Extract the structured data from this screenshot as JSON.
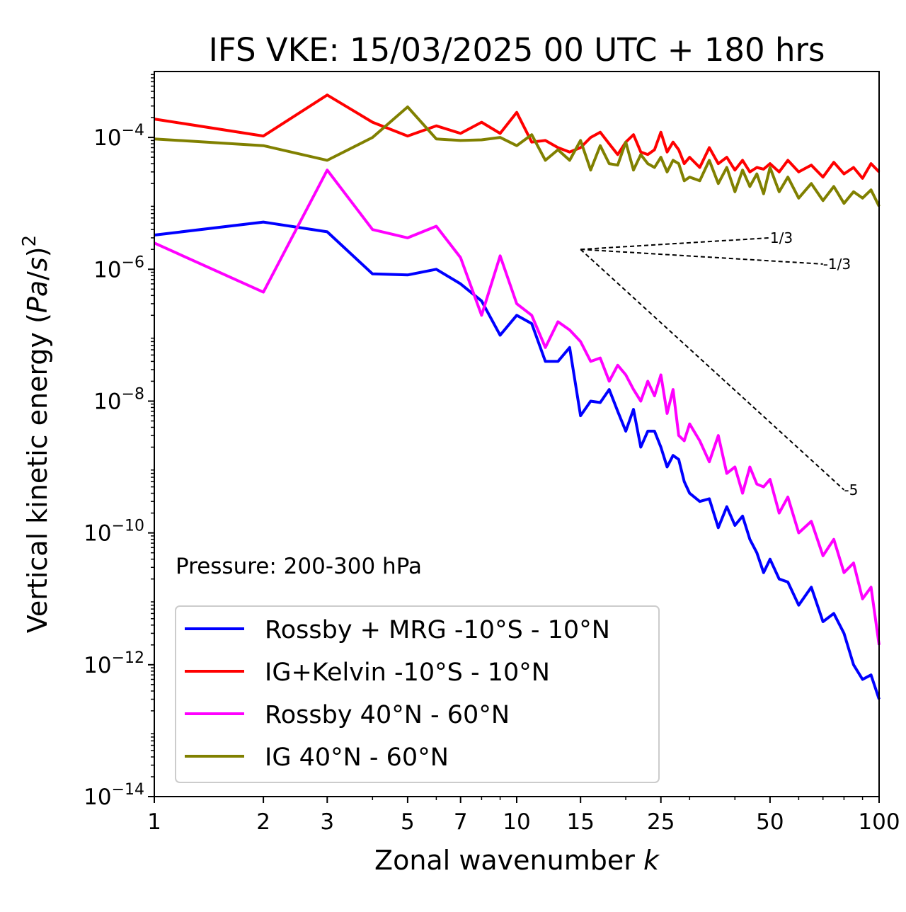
{
  "chart_data": {
    "type": "line",
    "title": "IFS VKE: 15/03/2025 00 UTC + 180 hrs",
    "xlabel": "Zonal wavenumber k",
    "ylabel": "Vertical kinetic energy (Pa/s)²",
    "xscale": "log",
    "yscale": "log",
    "xlim": [
      1,
      100
    ],
    "ylim": [
      1e-14,
      0.001
    ],
    "x_ticks": [
      1,
      2,
      3,
      5,
      7,
      10,
      15,
      25,
      50,
      100
    ],
    "x_tick_labels": [
      "1",
      "2",
      "3",
      "5",
      "7",
      "10",
      "15",
      "25",
      "50",
      "100"
    ],
    "y_ticks": [
      1e-14,
      1e-12,
      1e-10,
      1e-08,
      1e-06,
      0.0001
    ],
    "y_tick_labels": [
      {
        "base": "10",
        "exp": "−14"
      },
      {
        "base": "10",
        "exp": "−12"
      },
      {
        "base": "10",
        "exp": "−10"
      },
      {
        "base": "10",
        "exp": "−8"
      },
      {
        "base": "10",
        "exp": "−6"
      },
      {
        "base": "10",
        "exp": "−4"
      }
    ],
    "annotation": "Pressure: 200-300 hPa",
    "grid": false,
    "legend_position": "lower-left",
    "series": [
      {
        "name": "Rossby + MRG -10°S - 10°N",
        "color": "#0000ff",
        "x": [
          1,
          2,
          3,
          4,
          5,
          6,
          7,
          8,
          9,
          10,
          11,
          12,
          13,
          14,
          15,
          16,
          17,
          18,
          19,
          20,
          21,
          22,
          23,
          24,
          25,
          26,
          27,
          28,
          29,
          30,
          32,
          34,
          36,
          38,
          40,
          42,
          44,
          46,
          48,
          50,
          53,
          56,
          60,
          65,
          70,
          75,
          80,
          85,
          90,
          95,
          100
        ],
        "values": [
          3.3e-06,
          5.2e-06,
          3.7e-06,
          8.5e-07,
          8.2e-07,
          1e-06,
          6e-07,
          3.3e-07,
          1e-07,
          2e-07,
          1.5e-07,
          4e-08,
          4e-08,
          6.5e-08,
          6e-09,
          1e-08,
          9.5e-09,
          1.5e-08,
          7e-09,
          3.5e-09,
          7.5e-09,
          2e-09,
          3.5e-09,
          3.5e-09,
          2e-09,
          1e-09,
          1.5e-09,
          1.3e-09,
          6e-10,
          4e-10,
          3e-10,
          3.3e-10,
          1.2e-10,
          2.5e-10,
          1.3e-10,
          1.8e-10,
          8e-11,
          5e-11,
          2.5e-11,
          4e-11,
          2e-11,
          1.8e-11,
          8e-12,
          1.5e-11,
          4.5e-12,
          6e-12,
          3e-12,
          1e-12,
          6e-13,
          7e-13,
          3e-13
        ]
      },
      {
        "name": "IG+Kelvin -10°S - 10°N",
        "color": "#ff0000",
        "x": [
          1,
          2,
          3,
          4,
          5,
          6,
          7,
          8,
          9,
          10,
          11,
          12,
          13,
          14,
          15,
          16,
          17,
          18,
          19,
          20,
          21,
          22,
          23,
          24,
          25,
          26,
          27,
          28,
          29,
          30,
          32,
          34,
          36,
          38,
          40,
          42,
          44,
          46,
          48,
          50,
          53,
          56,
          60,
          65,
          70,
          75,
          80,
          85,
          90,
          95,
          100
        ],
        "values": [
          0.00019,
          0.000105,
          0.00044,
          0.00017,
          0.000105,
          0.00015,
          0.000115,
          0.00017,
          0.000115,
          0.00024,
          8.5e-05,
          9e-05,
          7e-05,
          6e-05,
          7e-05,
          0.0001,
          0.00012,
          8e-05,
          5.5e-05,
          8.5e-05,
          0.00011,
          6e-05,
          5.5e-05,
          6.5e-05,
          0.00012,
          6e-05,
          8.5e-05,
          6.5e-05,
          4e-05,
          5e-05,
          3.5e-05,
          7e-05,
          4e-05,
          5e-05,
          3.2e-05,
          4.5e-05,
          3e-05,
          3.5e-05,
          3.3e-05,
          4e-05,
          3e-05,
          4.5e-05,
          3e-05,
          3.8e-05,
          2.5e-05,
          4.2e-05,
          2.8e-05,
          3.5e-05,
          2.4e-05,
          4e-05,
          3e-05
        ]
      },
      {
        "name": "Rossby 40°N - 60°N",
        "color": "#ff00ff",
        "x": [
          1,
          2,
          3,
          4,
          5,
          6,
          7,
          8,
          9,
          10,
          11,
          12,
          13,
          14,
          15,
          16,
          17,
          18,
          19,
          20,
          21,
          22,
          23,
          24,
          25,
          26,
          27,
          28,
          29,
          30,
          32,
          34,
          36,
          38,
          40,
          42,
          44,
          46,
          48,
          50,
          53,
          56,
          60,
          65,
          70,
          75,
          80,
          85,
          90,
          95,
          100
        ],
        "values": [
          2.5e-06,
          4.5e-07,
          3.2e-05,
          4e-06,
          3e-06,
          4.5e-06,
          1.5e-06,
          2e-07,
          1.6e-06,
          3e-07,
          2e-07,
          6.5e-08,
          1.6e-07,
          1.2e-07,
          8e-08,
          4e-08,
          4.5e-08,
          2e-08,
          3.5e-08,
          2.5e-08,
          1.5e-08,
          1e-08,
          2e-08,
          1.2e-08,
          2.5e-08,
          6.5e-09,
          1.5e-08,
          3e-09,
          2.5e-09,
          4.5e-09,
          2.5e-09,
          1.2e-09,
          3e-09,
          8e-10,
          1e-09,
          4e-10,
          1e-09,
          5.5e-10,
          5e-10,
          6.5e-10,
          2e-10,
          3.5e-10,
          1e-10,
          1.5e-10,
          4.5e-11,
          8e-11,
          2.5e-11,
          3.5e-11,
          1e-11,
          1.5e-11,
          2e-12
        ]
      },
      {
        "name": "IG 40°N - 60°N",
        "color": "#808000",
        "x": [
          1,
          2,
          3,
          4,
          5,
          6,
          7,
          8,
          9,
          10,
          11,
          12,
          13,
          14,
          15,
          16,
          17,
          18,
          19,
          20,
          21,
          22,
          23,
          24,
          25,
          26,
          27,
          28,
          29,
          30,
          32,
          34,
          36,
          38,
          40,
          42,
          44,
          46,
          48,
          50,
          53,
          56,
          60,
          65,
          70,
          75,
          80,
          85,
          90,
          95,
          100
        ],
        "values": [
          9.5e-05,
          7.5e-05,
          4.5e-05,
          0.0001,
          0.00029,
          9.5e-05,
          9e-05,
          9.2e-05,
          0.0001,
          7.5e-05,
          0.00011,
          4.5e-05,
          6.5e-05,
          4.5e-05,
          9e-05,
          3.2e-05,
          7.5e-05,
          4e-05,
          3.8e-05,
          8.5e-05,
          3.2e-05,
          5.5e-05,
          4e-05,
          3.5e-05,
          5e-05,
          3e-05,
          4.5e-05,
          4e-05,
          2.2e-05,
          2.5e-05,
          2.2e-05,
          4.5e-05,
          2e-05,
          3.5e-05,
          1.5e-05,
          3.2e-05,
          1.8e-05,
          2.8e-05,
          1.4e-05,
          3.5e-05,
          1.5e-05,
          2.5e-05,
          1.2e-05,
          2e-05,
          1.1e-05,
          1.8e-05,
          1e-05,
          1.5e-05,
          1.2e-05,
          1.6e-05,
          9e-06
        ]
      }
    ],
    "reference_slopes": [
      {
        "label": "1/3",
        "slope": 0.3333,
        "x": [
          15,
          50
        ],
        "y": [
          2e-06,
          3e-06
        ]
      },
      {
        "label": "-1/3",
        "slope": -0.3333,
        "x": [
          15,
          70
        ],
        "y": [
          2e-06,
          1.2e-06
        ]
      },
      {
        "label": "-5",
        "slope": -5,
        "x": [
          15,
          80
        ],
        "y": [
          2e-06,
          4.5e-10
        ]
      }
    ]
  }
}
